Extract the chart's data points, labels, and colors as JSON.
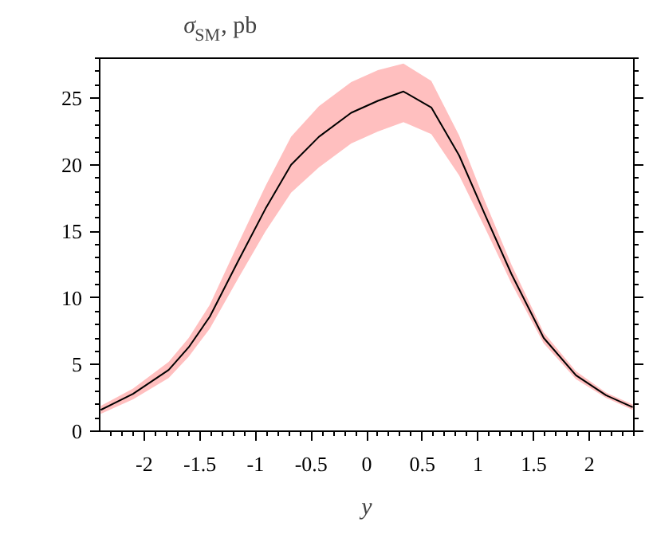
{
  "chart_data": {
    "type": "line",
    "title": "σ$_{SM}$, pb",
    "xlabel": "y",
    "xlim": [
      -2.4,
      2.4
    ],
    "ylim": [
      0,
      28
    ],
    "xticks": [
      -2,
      -1.5,
      -1,
      -0.5,
      0,
      0.5,
      1,
      1.5,
      2
    ],
    "yticks": [
      0,
      5,
      10,
      15,
      20,
      25
    ],
    "grid": false,
    "marker": "none",
    "line_style": "solid",
    "series": [
      {
        "color": "#000000",
        "x": [
          -2.39,
          -2.1,
          -1.78,
          -1.6,
          -1.41,
          -1.16,
          -0.91,
          -0.68,
          -0.43,
          -0.14,
          0.1,
          0.33,
          0.58,
          0.83,
          1.06,
          1.3,
          1.59,
          1.88,
          2.15,
          2.39
        ],
        "values": [
          1.6,
          2.8,
          4.6,
          6.3,
          8.6,
          12.7,
          16.7,
          20.0,
          22.1,
          23.9,
          24.8,
          25.5,
          24.3,
          20.7,
          16.3,
          11.8,
          7.0,
          4.2,
          2.7,
          1.8
        ],
        "lower": [
          1.3,
          2.4,
          4.0,
          5.6,
          7.7,
          11.4,
          15.0,
          17.9,
          19.8,
          21.6,
          22.5,
          23.2,
          22.3,
          19.2,
          15.3,
          11.1,
          6.6,
          3.9,
          2.5,
          1.6
        ],
        "upper": [
          1.9,
          3.2,
          5.2,
          7.0,
          9.5,
          14.0,
          18.4,
          22.1,
          24.4,
          26.2,
          27.1,
          27.6,
          26.3,
          22.2,
          17.3,
          12.5,
          7.4,
          4.5,
          2.9,
          2.0
        ]
      }
    ]
  }
}
